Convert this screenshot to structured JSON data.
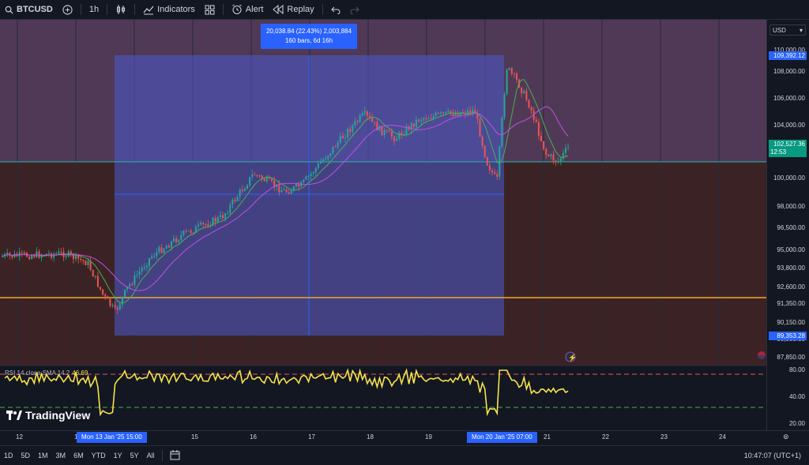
{
  "toolbar": {
    "symbol": "BTCUSD",
    "interval": "1h",
    "indicators_label": "Indicators",
    "alert_label": "Alert",
    "replay_label": "Replay"
  },
  "measure": {
    "line1": "20,038.84 (22.43%) 2,003,884",
    "line2": "160 bars, 6d 16h"
  },
  "price_axis": {
    "currency": "USD",
    "labels": [
      "110,000.00",
      "108,000.00",
      "106,000.00",
      "104,000.00",
      "100,000.00",
      "98,000.00",
      "96,500.00",
      "95,000.00",
      "93,800.00",
      "92,600.00",
      "91,350.00",
      "90,150.00",
      "88,950.00",
      "87,850.00"
    ],
    "badge_top": "109,392.12",
    "badge_current": "102,527.36",
    "badge_current_time": "12:53",
    "badge_bottom": "89,353.28"
  },
  "rsi": {
    "label": "RSI 14 close SMA 14 2",
    "value": "46.69",
    "axis": [
      "80.00",
      "40.00",
      "20.00"
    ]
  },
  "time_axis": {
    "labels": [
      "12",
      "15",
      "16",
      "17",
      "18",
      "19",
      "21",
      "22",
      "23",
      "24"
    ],
    "highlight_left": "Mon 13 Jan '25   15:00",
    "highlight_right": "Mon 20 Jan '25   07:00"
  },
  "bottom": {
    "ranges": [
      "1D",
      "5D",
      "1M",
      "3M",
      "6M",
      "YTD",
      "1Y",
      "5Y",
      "All"
    ],
    "clock": "10:47:07 (UTC+1)"
  },
  "brand": "TradingView",
  "colors": {
    "up": "#26a69a",
    "down": "#ef5350",
    "accent": "#2962ff",
    "rsi": "#f7e34a"
  }
}
